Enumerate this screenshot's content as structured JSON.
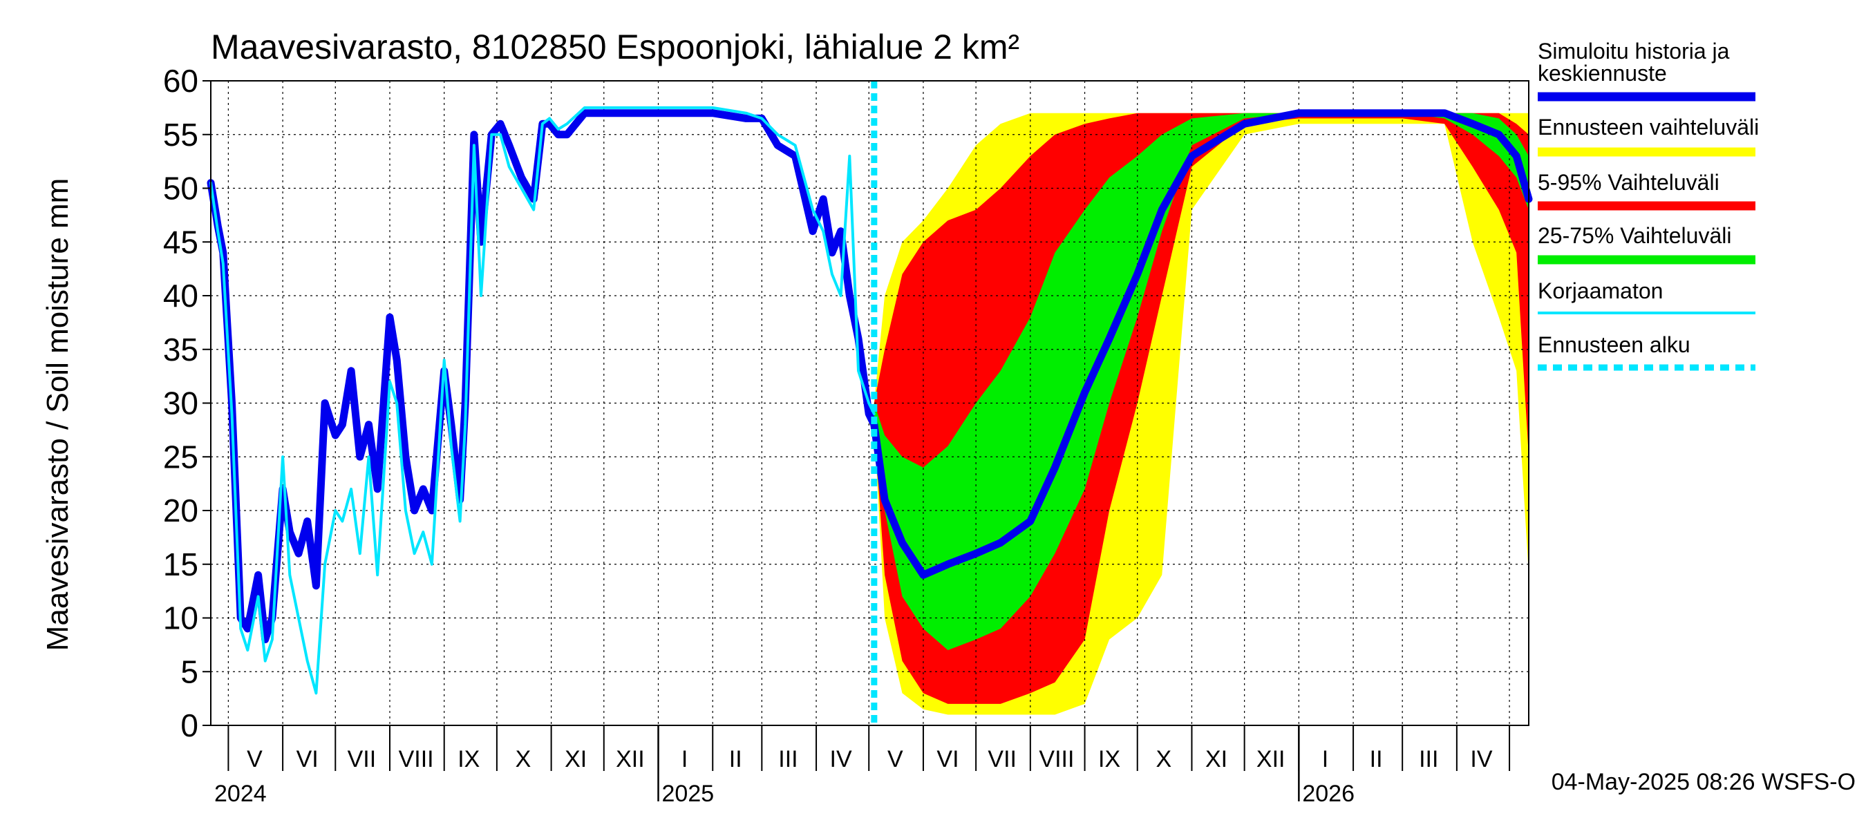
{
  "chart_data": {
    "type": "area",
    "title": "Maavesivarasto, 8102850 Espoonjoki, lähialue 2 km²",
    "ylabel": "Maavesivarasto / Soil moisture   mm",
    "xlabel": "",
    "ylim": [
      0,
      60
    ],
    "yticks": [
      0,
      5,
      10,
      15,
      20,
      25,
      30,
      35,
      40,
      45,
      50,
      55,
      60
    ],
    "xlim": [
      "2024-04-21",
      "2026-05-12"
    ],
    "grid": true,
    "legend_position": "right",
    "timestamp": "04-May-2025 08:26 WSFS-O",
    "forecast_start": "2025-05-04",
    "month_labels": [
      {
        "label": "V",
        "date": "2024-05-16"
      },
      {
        "label": "VI",
        "date": "2024-06-15"
      },
      {
        "label": "VII",
        "date": "2024-07-16"
      },
      {
        "label": "VIII",
        "date": "2024-08-16"
      },
      {
        "label": "IX",
        "date": "2024-09-15"
      },
      {
        "label": "X",
        "date": "2024-10-16"
      },
      {
        "label": "XI",
        "date": "2024-11-15"
      },
      {
        "label": "XII",
        "date": "2024-12-16"
      },
      {
        "label": "I",
        "date": "2025-01-16"
      },
      {
        "label": "II",
        "date": "2025-02-14"
      },
      {
        "label": "III",
        "date": "2025-03-16"
      },
      {
        "label": "IV",
        "date": "2025-04-15"
      },
      {
        "label": "V",
        "date": "2025-05-16"
      },
      {
        "label": "VI",
        "date": "2025-06-15"
      },
      {
        "label": "VII",
        "date": "2025-07-16"
      },
      {
        "label": "VIII",
        "date": "2025-08-16"
      },
      {
        "label": "IX",
        "date": "2025-09-15"
      },
      {
        "label": "X",
        "date": "2025-10-16"
      },
      {
        "label": "XI",
        "date": "2025-11-15"
      },
      {
        "label": "XII",
        "date": "2025-12-16"
      },
      {
        "label": "I",
        "date": "2026-01-16"
      },
      {
        "label": "II",
        "date": "2026-02-14"
      },
      {
        "label": "III",
        "date": "2026-03-16"
      },
      {
        "label": "IV",
        "date": "2026-04-15"
      }
    ],
    "month_boundaries": [
      "2024-05-01",
      "2024-06-01",
      "2024-07-01",
      "2024-08-01",
      "2024-09-01",
      "2024-10-01",
      "2024-11-01",
      "2024-12-01",
      "2025-01-01",
      "2025-02-01",
      "2025-03-01",
      "2025-04-01",
      "2025-05-01",
      "2025-06-01",
      "2025-07-01",
      "2025-08-01",
      "2025-09-01",
      "2025-10-01",
      "2025-11-01",
      "2025-12-01",
      "2026-01-01",
      "2026-02-01",
      "2026-03-01",
      "2026-04-01",
      "2026-05-01"
    ],
    "year_boundaries": [
      "2025-01-01",
      "2026-01-01"
    ],
    "year_labels": [
      {
        "label": "2024",
        "date": "2024-04-21"
      },
      {
        "label": "2025",
        "date": "2025-01-01"
      },
      {
        "label": "2026",
        "date": "2026-01-01"
      }
    ],
    "series": [
      {
        "name": "Simuloitu historia ja keskiennuste",
        "color": "#0000ee",
        "x": [
          "2024-04-21",
          "2024-04-25",
          "2024-04-28",
          "2024-05-03",
          "2024-05-08",
          "2024-05-12",
          "2024-05-18",
          "2024-05-22",
          "2024-05-26",
          "2024-06-01",
          "2024-06-05",
          "2024-06-10",
          "2024-06-15",
          "2024-06-20",
          "2024-06-25",
          "2024-07-01",
          "2024-07-05",
          "2024-07-10",
          "2024-07-15",
          "2024-07-20",
          "2024-07-25",
          "2024-08-01",
          "2024-08-05",
          "2024-08-10",
          "2024-08-15",
          "2024-08-20",
          "2024-08-25",
          "2024-09-01",
          "2024-09-05",
          "2024-09-10",
          "2024-09-13",
          "2024-09-18",
          "2024-09-22",
          "2024-09-28",
          "2024-10-03",
          "2024-10-08",
          "2024-10-15",
          "2024-10-22",
          "2024-10-27",
          "2024-10-31",
          "2024-11-05",
          "2024-11-10",
          "2024-11-20",
          "2024-12-01",
          "2025-01-01",
          "2025-02-01",
          "2025-02-20",
          "2025-03-01",
          "2025-03-10",
          "2025-03-20",
          "2025-03-30",
          "2025-04-05",
          "2025-04-10",
          "2025-04-15",
          "2025-04-20",
          "2025-04-25",
          "2025-05-01",
          "2025-05-04",
          "2025-05-10",
          "2025-05-20",
          "2025-06-01",
          "2025-06-15",
          "2025-07-01",
          "2025-07-15",
          "2025-08-01",
          "2025-08-15",
          "2025-09-01",
          "2025-09-15",
          "2025-10-01",
          "2025-10-15",
          "2025-11-01",
          "2025-12-01",
          "2026-01-01",
          "2026-02-01",
          "2026-03-01",
          "2026-03-25",
          "2026-04-10",
          "2026-04-25",
          "2026-05-05",
          "2026-05-12"
        ],
        "values": [
          50.5,
          46.5,
          44,
          30,
          10,
          9,
          14,
          8,
          10,
          22,
          18,
          16,
          19,
          13,
          30,
          27,
          28,
          33,
          25,
          28,
          22,
          38,
          34,
          25,
          20,
          22,
          20,
          33,
          28,
          21,
          30,
          55,
          45,
          55,
          56,
          54,
          51,
          49,
          56,
          56,
          55,
          55,
          57,
          57,
          57,
          57,
          56.5,
          56.5,
          54,
          53,
          46,
          49,
          44,
          46,
          40,
          36,
          29,
          28,
          21,
          17,
          14,
          15,
          16,
          17,
          19,
          24,
          31,
          36,
          42,
          48,
          53,
          56,
          57,
          57,
          57,
          57,
          56,
          55,
          53,
          49
        ]
      },
      {
        "name": "Korjaamaton",
        "color": "#00e6ff",
        "x": [
          "2024-04-21",
          "2024-04-25",
          "2024-04-28",
          "2024-05-03",
          "2024-05-08",
          "2024-05-12",
          "2024-05-18",
          "2024-05-22",
          "2024-05-26",
          "2024-06-01",
          "2024-06-05",
          "2024-06-10",
          "2024-06-15",
          "2024-06-20",
          "2024-06-25",
          "2024-07-01",
          "2024-07-05",
          "2024-07-10",
          "2024-07-15",
          "2024-07-20",
          "2024-07-25",
          "2024-08-01",
          "2024-08-05",
          "2024-08-10",
          "2024-08-15",
          "2024-08-20",
          "2024-08-25",
          "2024-09-01",
          "2024-09-05",
          "2024-09-10",
          "2024-09-13",
          "2024-09-18",
          "2024-09-22",
          "2024-09-28",
          "2024-10-03",
          "2024-10-08",
          "2024-10-15",
          "2024-10-22",
          "2024-10-27",
          "2024-10-31",
          "2024-11-05",
          "2024-11-10",
          "2024-11-20",
          "2024-12-01",
          "2025-01-01",
          "2025-02-01",
          "2025-02-20",
          "2025-03-01",
          "2025-03-10",
          "2025-03-20",
          "2025-03-30",
          "2025-04-05",
          "2025-04-10",
          "2025-04-15",
          "2025-04-20",
          "2025-04-25",
          "2025-05-01",
          "2025-05-04"
        ],
        "values": [
          50.5,
          46,
          43,
          29,
          9,
          7,
          12,
          6,
          8,
          25,
          14,
          10,
          6,
          3,
          15,
          20,
          19,
          22,
          16,
          25,
          14,
          32,
          30,
          20,
          16,
          18,
          15,
          34,
          26,
          19,
          28,
          54,
          40,
          55,
          55,
          52,
          50,
          48,
          56,
          56.5,
          55.5,
          56,
          57.5,
          57.5,
          57.5,
          57.5,
          57,
          56.5,
          55,
          54,
          48,
          46,
          42,
          40,
          53,
          33,
          30,
          29
        ]
      }
    ],
    "bands": [
      {
        "name": "Ennusteen vaihteluväli",
        "color": "#ffff00",
        "x": [
          "2025-05-04",
          "2025-05-10",
          "2025-05-20",
          "2025-06-01",
          "2025-06-15",
          "2025-07-01",
          "2025-07-15",
          "2025-08-01",
          "2025-08-15",
          "2025-09-01",
          "2025-09-15",
          "2025-10-01",
          "2025-10-15",
          "2025-11-01",
          "2025-12-01",
          "2026-01-01",
          "2026-02-01",
          "2026-03-01",
          "2026-03-25",
          "2026-04-10",
          "2026-04-25",
          "2026-05-05",
          "2026-05-12"
        ],
        "low": [
          28,
          10,
          3,
          1.5,
          1,
          1,
          1,
          1,
          1,
          2,
          8,
          10,
          14,
          48,
          55,
          56,
          56,
          56,
          56,
          45,
          38,
          33,
          14
        ],
        "high": [
          30,
          40,
          45,
          47,
          50,
          54,
          56,
          57,
          57,
          57,
          57,
          57,
          57,
          57,
          57,
          57,
          57,
          57,
          57,
          57,
          57,
          57,
          57
        ]
      },
      {
        "name": "5-95% Vaihteluväli",
        "color": "#ff0000",
        "x": [
          "2025-05-04",
          "2025-05-10",
          "2025-05-20",
          "2025-06-01",
          "2025-06-15",
          "2025-07-01",
          "2025-07-15",
          "2025-08-01",
          "2025-08-15",
          "2025-09-01",
          "2025-09-15",
          "2025-10-01",
          "2025-10-15",
          "2025-11-01",
          "2025-12-01",
          "2026-01-01",
          "2026-02-01",
          "2026-03-01",
          "2026-03-25",
          "2026-04-10",
          "2026-04-25",
          "2026-05-05",
          "2026-05-12"
        ],
        "low": [
          28,
          14,
          6,
          3,
          2,
          2,
          2,
          3,
          4,
          8,
          20,
          30,
          40,
          52,
          56,
          56.5,
          56.5,
          56.5,
          56,
          52,
          48,
          44,
          25
        ],
        "high": [
          30,
          35,
          42,
          45,
          47,
          48,
          50,
          53,
          55,
          56,
          56.5,
          57,
          57,
          57,
          57,
          57,
          57,
          57,
          57,
          57,
          57,
          56,
          55
        ]
      },
      {
        "name": "25-75% Vaihteluväli",
        "color": "#00ee00",
        "x": [
          "2025-05-04",
          "2025-05-10",
          "2025-05-20",
          "2025-06-01",
          "2025-06-15",
          "2025-07-01",
          "2025-07-15",
          "2025-08-01",
          "2025-08-15",
          "2025-09-01",
          "2025-09-15",
          "2025-10-01",
          "2025-10-15",
          "2025-11-01",
          "2025-12-01",
          "2026-01-01",
          "2026-02-01",
          "2026-03-01",
          "2026-03-25",
          "2026-04-10",
          "2026-04-25",
          "2026-05-05",
          "2026-05-12"
        ],
        "low": [
          28,
          20,
          12,
          9,
          7,
          8,
          9,
          12,
          16,
          22,
          30,
          38,
          46,
          54,
          56.5,
          57,
          57,
          57,
          56.5,
          55,
          53,
          51,
          48
        ],
        "high": [
          30,
          27,
          25,
          24,
          26,
          30,
          33,
          38,
          44,
          48,
          51,
          53,
          55,
          56.5,
          57,
          57,
          57,
          57,
          57,
          57,
          56.5,
          55,
          53
        ]
      }
    ],
    "legend": [
      {
        "label": "Simuloitu historia ja keskiennuste",
        "color": "#0000ee",
        "style": "solid"
      },
      {
        "label": "Ennusteen vaihteluväli",
        "color": "#ffff00",
        "style": "solid"
      },
      {
        "label": "5-95% Vaihteluväli",
        "color": "#ff0000",
        "style": "solid"
      },
      {
        "label": "25-75% Vaihteluväli",
        "color": "#00ee00",
        "style": "solid"
      },
      {
        "label": "Korjaamaton",
        "color": "#00e6ff",
        "style": "thin"
      },
      {
        "label": "Ennusteen alku",
        "color": "#00e6ff",
        "style": "dashed"
      }
    ]
  }
}
